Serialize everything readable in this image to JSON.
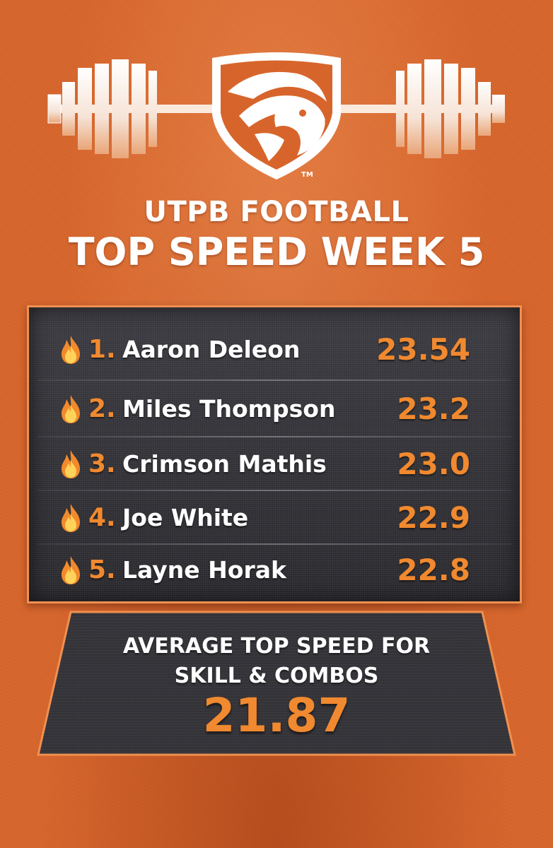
{
  "header": {
    "line1": "UTPB FOOTBALL",
    "line2": "TOP SPEED WEEK 5",
    "logo_icon": "falcon-head-shield-logo",
    "decoration_icon": "barbell-icon",
    "trademark": "TM"
  },
  "leaderboard": [
    {
      "rank": "1.",
      "name": "Aaron Deleon",
      "speed": "23.54",
      "icon": "fire-icon"
    },
    {
      "rank": "2.",
      "name": "Miles Thompson",
      "speed": "23.2",
      "icon": "fire-icon"
    },
    {
      "rank": "3.",
      "name": "Crimson Mathis",
      "speed": "23.0",
      "icon": "fire-icon"
    },
    {
      "rank": "4.",
      "name": "Joe White",
      "speed": "22.9",
      "icon": "fire-icon"
    },
    {
      "rank": "5.",
      "name": "Layne Horak",
      "speed": "22.8",
      "icon": "fire-icon"
    }
  ],
  "average": {
    "label_line1": "AVERAGE TOP SPEED FOR",
    "label_line2": "SKILL & COMBOS",
    "value": "21.87"
  },
  "colors": {
    "background": "#d7652b",
    "accent": "#f0892f",
    "board": "#2f2e33",
    "text": "#ffffff"
  }
}
